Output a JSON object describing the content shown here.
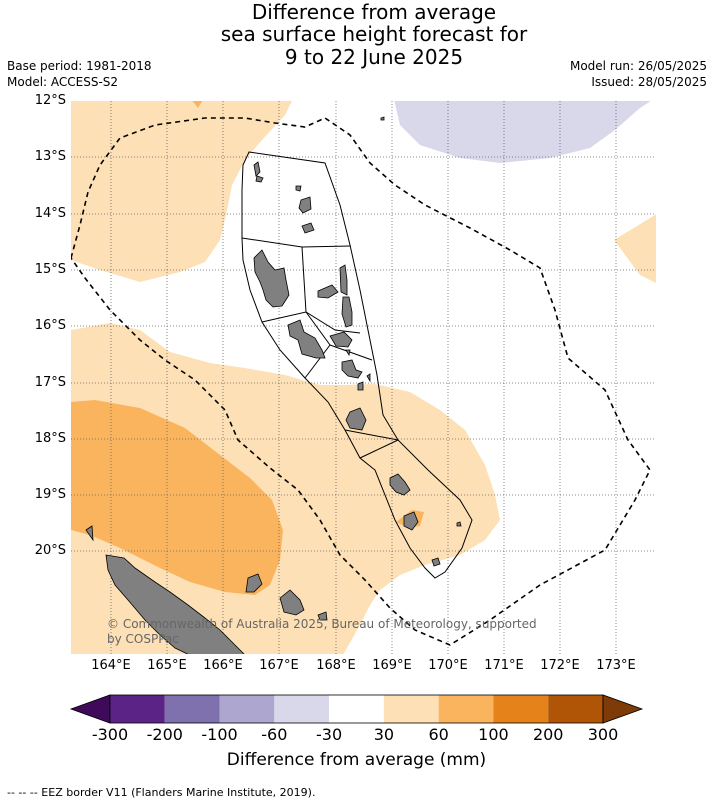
{
  "title": {
    "line1": "Difference from average",
    "line2": "sea surface height forecast for",
    "line3": "9 to 22 June 2025"
  },
  "meta": {
    "base_period": "Base period: 1981-2018",
    "model": "Model: ACCESS-S2",
    "model_run": "Model run: 26/05/2025",
    "issued": "Issued: 28/05/2025"
  },
  "map": {
    "lat_labels": [
      "12°S",
      "13°S",
      "14°S",
      "15°S",
      "16°S",
      "17°S",
      "18°S",
      "19°S",
      "20°S"
    ],
    "lon_labels": [
      "164°E",
      "165°E",
      "166°E",
      "167°E",
      "168°E",
      "169°E",
      "170°E",
      "171°E",
      "172°E",
      "173°E"
    ],
    "copyright": "© Commonwealth of Australia 2025, Bureau of Meteorology, supported by COSPPac",
    "colors": {
      "land": "#808080",
      "light_orange": "#fde0b5",
      "mid_orange": "#fbb45e",
      "light_lavender": "#d8d8ea"
    }
  },
  "colorbar": {
    "title": "Difference from average (mm)",
    "ticks": [
      "-300",
      "-200",
      "-100",
      "-60",
      "-30",
      "30",
      "60",
      "100",
      "200",
      "300"
    ],
    "colors": [
      "#3f0a59",
      "#5a2385",
      "#7e71ad",
      "#ada7cf",
      "#d8d8ea",
      "#ffffff",
      "#fde0b5",
      "#fbb45e",
      "#e5831a",
      "#b05506",
      "#7e3a07"
    ]
  },
  "footnote": "--  --  -- EEZ border V11 (Flanders Marine Institute, 2019)."
}
